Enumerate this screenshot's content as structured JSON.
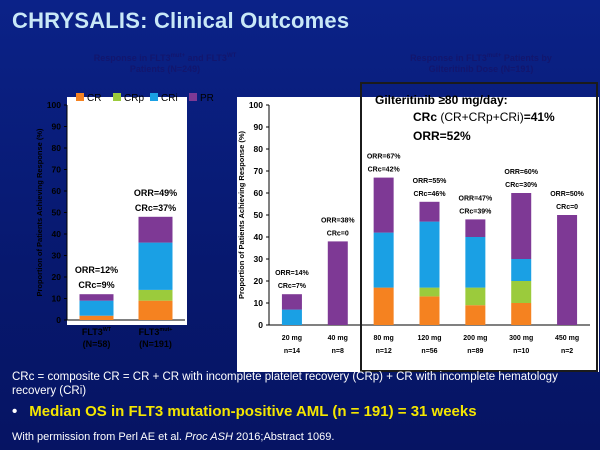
{
  "title": "CHRYSALIS: Clinical Outcomes",
  "colors": {
    "CR": "#f58220",
    "CRp": "#9bcb3c",
    "CRi": "#1aa0e4",
    "PR": "#7e3995",
    "bg": "#08186f"
  },
  "chart_data": [
    {
      "type": "stacked-bar",
      "title_main": "Response in FLT3",
      "title_sup1": "mut+",
      "title_mid": " and FLT3",
      "title_sup2": "WT",
      "title_line2": "Patients (N=249)",
      "ylabel": "Proportion of Patients Achieving Response (%)",
      "ylim": [
        0,
        100
      ],
      "yticks": [
        "0",
        "10",
        "20",
        "30",
        "40",
        "50",
        "60",
        "70",
        "80",
        "90",
        "100"
      ],
      "legend": [
        "CR",
        "CRp",
        "CRi",
        "PR"
      ],
      "categories": [
        {
          "label": "FLT3",
          "sup": "WT",
          "n": "(N=58)",
          "orr": "ORR=12%",
          "crc": "CRc=9%",
          "values": {
            "CR": 2,
            "CRp": 0,
            "CRi": 7,
            "PR": 3
          }
        },
        {
          "label": "FLT3",
          "sup": "mut+",
          "n": "(N=191)",
          "orr": "ORR=49%",
          "crc": "CRc=37%",
          "values": {
            "CR": 9,
            "CRp": 5,
            "CRi": 22,
            "PR": 12
          }
        }
      ]
    },
    {
      "type": "stacked-bar",
      "title_main": "Response in FLT3",
      "title_sup1": "mut+",
      "title_mid": " Patients by",
      "title_line2": "Gilteritinib Dose (N=191)",
      "ylabel": "Proportion of Patients Achieving Response (%)",
      "ylim": [
        0,
        100
      ],
      "yticks": [
        "0",
        "10",
        "20",
        "30",
        "40",
        "50",
        "60",
        "70",
        "80",
        "90",
        "100"
      ],
      "categories": [
        {
          "label": "20 mg",
          "n": "n=14",
          "orr": "ORR=14%",
          "crc": "CRc=7%",
          "values": {
            "CR": 0,
            "CRp": 0,
            "CRi": 7,
            "PR": 7
          }
        },
        {
          "label": "40 mg",
          "n": "n=8",
          "orr": "ORR=38%",
          "crc": "CRc=0",
          "values": {
            "CR": 0,
            "CRp": 0,
            "CRi": 0,
            "PR": 38
          }
        },
        {
          "label": "80 mg",
          "n": "n=12",
          "orr": "ORR=67%",
          "crc": "CRc=42%",
          "values": {
            "CR": 17,
            "CRp": 0,
            "CRi": 25,
            "PR": 25
          }
        },
        {
          "label": "120 mg",
          "n": "n=56",
          "orr": "ORR=55%",
          "crc": "CRc=46%",
          "values": {
            "CR": 13,
            "CRp": 4,
            "CRi": 30,
            "PR": 9
          }
        },
        {
          "label": "200 mg",
          "n": "n=89",
          "orr": "ORR=47%",
          "crc": "CRc=39%",
          "values": {
            "CR": 9,
            "CRp": 8,
            "CRi": 23,
            "PR": 8
          }
        },
        {
          "label": "300 mg",
          "n": "n=10",
          "orr": "ORR=60%",
          "crc": "CRc=30%",
          "values": {
            "CR": 10,
            "CRp": 10,
            "CRi": 10,
            "PR": 30
          }
        },
        {
          "label": "450 mg",
          "n": "n=2",
          "orr": "ORR=50%",
          "crc": "CRc=0",
          "values": {
            "CR": 0,
            "CRp": 0,
            "CRi": 0,
            "PR": 50
          }
        }
      ],
      "highlight": {
        "line1": "Gilteritinib ≥80 mg/day:",
        "crc_label": "CRc",
        "crc_def": " (CR+CRp+CRi)",
        "crc_value": "=41%",
        "orr": "ORR=52%"
      }
    }
  ],
  "caption": "CRc = composite CR = CR + CR with incomplete platelet recovery (CRp) + CR with incomplete hematology recovery (CRi)",
  "bullet": "Median OS in FLT3 mutation-positive AML (n = 191) = 31 weeks",
  "credit_pre": "With permission from Perl AE et al. ",
  "credit_journal": "Proc ASH",
  "credit_post": " 2016;Abstract 1069."
}
